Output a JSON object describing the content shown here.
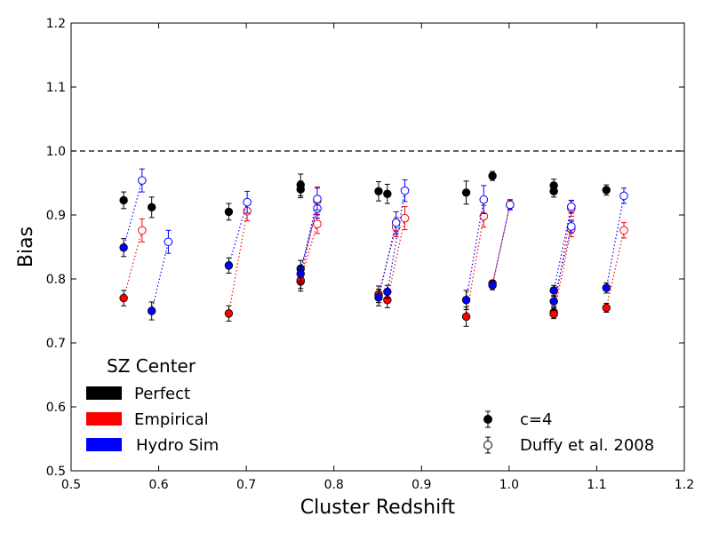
{
  "chart_data": {
    "type": "scatter",
    "xlabel": "Cluster Redshift",
    "ylabel": "Bias",
    "xlim": [
      0.5,
      1.2
    ],
    "ylim": [
      0.5,
      1.2
    ],
    "xticks": [
      "0.5",
      "0.6",
      "0.7",
      "0.8",
      "0.9",
      "1.0",
      "1.1",
      "1.2"
    ],
    "yticks": [
      "0.5",
      "0.6",
      "0.7",
      "0.8",
      "0.9",
      "1.0",
      "1.1",
      "1.2"
    ],
    "reference_line": {
      "y": 1.0,
      "style": "dashed",
      "color": "#000000"
    },
    "legend_centers": {
      "title": "SZ Center",
      "placement": "lower-left",
      "entries": [
        {
          "label": "Perfect",
          "color": "#000000"
        },
        {
          "label": "Empirical",
          "color": "#ff0000"
        },
        {
          "label": "Hydro Sim",
          "color": "#0000ff"
        }
      ]
    },
    "legend_models": {
      "placement": "lower-right",
      "entries": [
        {
          "label": "c=4",
          "marker": "filled-circle"
        },
        {
          "label": "Duffy et al. 2008",
          "marker": "open-circle"
        }
      ]
    },
    "series": [
      {
        "center": "Perfect",
        "color": "#000000",
        "pairs": [
          {
            "c4": [
              0.56,
              0.923,
              0.013
            ],
            "duffy": null
          },
          {
            "c4": [
              0.592,
              0.912,
              0.016
            ],
            "duffy": null
          },
          {
            "c4": [
              0.68,
              0.905,
              0.013
            ],
            "duffy": null
          },
          {
            "c4": [
              0.762,
              0.947,
              0.017
            ],
            "duffy": null
          },
          {
            "c4": [
              0.762,
              0.94,
              0.013
            ],
            "duffy": null
          },
          {
            "c4": [
              0.851,
              0.937,
              0.015
            ],
            "duffy": null
          },
          {
            "c4": [
              0.861,
              0.933,
              0.015
            ],
            "duffy": null
          },
          {
            "c4": [
              0.951,
              0.935,
              0.018
            ],
            "duffy": null
          },
          {
            "c4": [
              0.981,
              0.961,
              0.007
            ],
            "duffy": null
          },
          {
            "c4": [
              1.051,
              0.946,
              0.01
            ],
            "duffy": null
          },
          {
            "c4": [
              1.051,
              0.937,
              0.009
            ],
            "duffy": null
          },
          {
            "c4": [
              1.111,
              0.939,
              0.008
            ],
            "duffy": null
          }
        ]
      },
      {
        "center": "Empirical",
        "color": "#ff0000",
        "pairs": [
          {
            "c4": [
              0.56,
              0.77,
              0.012
            ],
            "duffy": [
              0.581,
              0.876,
              0.018
            ]
          },
          {
            "c4": [
              0.68,
              0.746,
              0.012
            ],
            "duffy": [
              0.701,
              0.906,
              0.015
            ]
          },
          {
            "c4": [
              0.762,
              0.796,
              0.015
            ],
            "duffy": [
              0.781,
              0.922,
              0.022
            ]
          },
          {
            "c4": [
              0.762,
              0.798,
              0.013
            ],
            "duffy": [
              0.781,
              0.886,
              0.015
            ]
          },
          {
            "c4": [
              0.851,
              0.776,
              0.013
            ],
            "duffy": [
              0.871,
              0.881,
              0.015
            ]
          },
          {
            "c4": [
              0.861,
              0.767,
              0.012
            ],
            "duffy": [
              0.881,
              0.895,
              0.018
            ]
          },
          {
            "c4": [
              0.951,
              0.741,
              0.015
            ],
            "duffy": [
              0.971,
              0.898,
              0.017
            ]
          },
          {
            "c4": [
              0.981,
              0.793,
              0.005
            ],
            "duffy": [
              1.001,
              0.916,
              0.007
            ]
          },
          {
            "c4": [
              1.051,
              0.748,
              0.007
            ],
            "duffy": [
              1.071,
              0.91,
              0.012
            ]
          },
          {
            "c4": [
              1.051,
              0.745,
              0.007
            ],
            "duffy": [
              1.071,
              0.878,
              0.012
            ]
          },
          {
            "c4": [
              1.111,
              0.755,
              0.007
            ],
            "duffy": [
              1.131,
              0.876,
              0.012
            ]
          }
        ]
      },
      {
        "center": "Hydro Sim",
        "color": "#0000ff",
        "pairs": [
          {
            "c4": [
              0.56,
              0.849,
              0.014
            ],
            "duffy": [
              0.581,
              0.954,
              0.018
            ]
          },
          {
            "c4": [
              0.592,
              0.75,
              0.014
            ],
            "duffy": [
              0.611,
              0.858,
              0.018
            ]
          },
          {
            "c4": [
              0.68,
              0.821,
              0.012
            ],
            "duffy": [
              0.701,
              0.92,
              0.017
            ]
          },
          {
            "c4": [
              0.762,
              0.816,
              0.013
            ],
            "duffy": [
              0.781,
              0.91,
              0.015
            ]
          },
          {
            "c4": [
              0.762,
              0.808,
              0.012
            ],
            "duffy": [
              0.781,
              0.925,
              0.017
            ]
          },
          {
            "c4": [
              0.851,
              0.771,
              0.013
            ],
            "duffy": [
              0.871,
              0.888,
              0.017
            ]
          },
          {
            "c4": [
              0.861,
              0.78,
              0.01
            ],
            "duffy": [
              0.881,
              0.938,
              0.017
            ]
          },
          {
            "c4": [
              0.951,
              0.767,
              0.015
            ],
            "duffy": [
              0.971,
              0.924,
              0.022
            ]
          },
          {
            "c4": [
              0.981,
              0.79,
              0.007
            ],
            "duffy": [
              1.001,
              0.916,
              0.008
            ]
          },
          {
            "c4": [
              1.051,
              0.782,
              0.008
            ],
            "duffy": [
              1.071,
              0.913,
              0.01
            ]
          },
          {
            "c4": [
              1.051,
              0.765,
              0.008
            ],
            "duffy": [
              1.071,
              0.882,
              0.01
            ]
          },
          {
            "c4": [
              1.111,
              0.786,
              0.008
            ],
            "duffy": [
              1.131,
              0.93,
              0.012
            ]
          }
        ]
      }
    ]
  }
}
